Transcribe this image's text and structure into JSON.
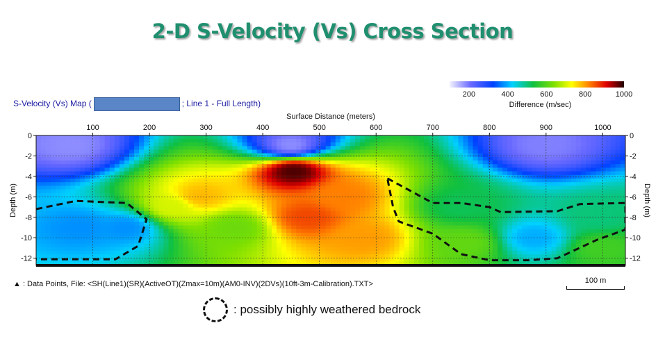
{
  "slide_title": "2-D S-Velocity (Vs) Cross Section",
  "map_title_prefix": "S-Velocity (Vs) Map (",
  "map_title_suffix": "; Line 1 - Full Length)",
  "footnote": "▲ : Data Points,  File: <SH(Line1)(SR)(ActiveOT)(Zmax=10m)(AM0-INV)(2DVs)(10ft-3m-Calibration).TXT>",
  "scale_bar_label": "100 m",
  "weathered_legend_text": ": possibly highly weathered bedrock",
  "colors": {
    "title": "#1f8f6f",
    "map_title": "#1a1aa0",
    "dashed_boundary": "#111111"
  },
  "chart_data": {
    "type": "heatmap",
    "title": "",
    "xlabel": "Surface Distance (meters)",
    "ylabel": "Depth (m)",
    "ylabel_right": "Depth (m)",
    "xlim": [
      0,
      1040
    ],
    "ylim": [
      -12.7,
      0
    ],
    "xticks": [
      100,
      200,
      300,
      400,
      500,
      600,
      700,
      800,
      900,
      1000
    ],
    "yticks": [
      0,
      -2,
      -4,
      -6,
      -8,
      -10,
      -12
    ],
    "grid": true,
    "colorbar": {
      "label": "Difference (m/sec)",
      "ticks": [
        200,
        400,
        600,
        800,
        1000
      ],
      "range": [
        100,
        1000
      ]
    },
    "velocity_field_samples_m_per_s": [
      {
        "x": 60,
        "depth": -1,
        "vs": 180
      },
      {
        "x": 450,
        "depth": -1,
        "vs": 180
      },
      {
        "x": 900,
        "depth": -1,
        "vs": 190
      },
      {
        "x": 80,
        "depth": -9,
        "vs": 380
      },
      {
        "x": 160,
        "depth": -9,
        "vs": 380
      },
      {
        "x": 240,
        "depth": -7,
        "vs": 700
      },
      {
        "x": 290,
        "depth": -6,
        "vs": 780
      },
      {
        "x": 350,
        "depth": -9,
        "vs": 620
      },
      {
        "x": 455,
        "depth": -3.5,
        "vs": 980
      },
      {
        "x": 480,
        "depth": -8,
        "vs": 860
      },
      {
        "x": 540,
        "depth": -6,
        "vs": 820
      },
      {
        "x": 580,
        "depth": -10,
        "vs": 800
      },
      {
        "x": 750,
        "depth": -7,
        "vs": 520
      },
      {
        "x": 760,
        "depth": -10.5,
        "vs": 610
      },
      {
        "x": 880,
        "depth": -10,
        "vs": 400
      },
      {
        "x": 995,
        "depth": -8,
        "vs": 500
      },
      {
        "x": 1000,
        "depth": -11,
        "vs": 580
      }
    ],
    "weathered_bedrock_boundaries": [
      {
        "name": "left",
        "points": [
          [
            0,
            -7.2
          ],
          [
            70,
            -6.4
          ],
          [
            160,
            -6.6
          ],
          [
            195,
            -8.2
          ],
          [
            180,
            -10.8
          ],
          [
            140,
            -12.1
          ],
          [
            0,
            -12.1
          ]
        ]
      },
      {
        "name": "right",
        "points": [
          [
            620,
            -4.2
          ],
          [
            660,
            -5.4
          ],
          [
            700,
            -6.6
          ],
          [
            750,
            -6.6
          ],
          [
            800,
            -7.0
          ],
          [
            820,
            -7.5
          ],
          [
            920,
            -7.4
          ],
          [
            960,
            -6.7
          ],
          [
            1040,
            -6.6
          ],
          [
            1040,
            -9.2
          ],
          [
            990,
            -10.2
          ],
          [
            920,
            -12.0
          ],
          [
            870,
            -12.2
          ],
          [
            800,
            -12.2
          ],
          [
            750,
            -11.6
          ],
          [
            700,
            -9.6
          ],
          [
            660,
            -8.8
          ],
          [
            640,
            -8.4
          ],
          [
            630,
            -7.0
          ],
          [
            625,
            -5.6
          ],
          [
            620,
            -4.2
          ]
        ]
      }
    ]
  }
}
